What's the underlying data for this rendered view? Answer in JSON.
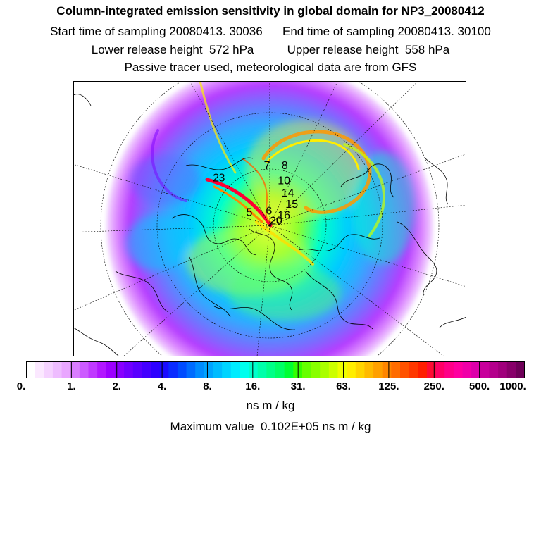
{
  "header": {
    "title": "Column-integrated emission sensitivity in global domain for NP3_20080412",
    "start_label": "Start time of sampling 20080413. 30036",
    "end_label": "End time of sampling 20080413. 30100",
    "lower_label": "Lower release height  572 hPa",
    "upper_label": "Upper release height  558 hPa",
    "note": "Passive tracer used, meteorological data are from GFS"
  },
  "map": {
    "projection": "polar-stereographic-north",
    "markers": [
      {
        "label": "2",
        "x": 0.355,
        "y": 0.365
      },
      {
        "label": "3",
        "x": 0.37,
        "y": 0.365
      },
      {
        "label": "5",
        "x": 0.44,
        "y": 0.49
      },
      {
        "label": "6",
        "x": 0.49,
        "y": 0.485
      },
      {
        "label": "7",
        "x": 0.485,
        "y": 0.32
      },
      {
        "label": "8",
        "x": 0.53,
        "y": 0.32
      },
      {
        "label": "10",
        "x": 0.52,
        "y": 0.375
      },
      {
        "label": "14",
        "x": 0.53,
        "y": 0.42
      },
      {
        "label": "15",
        "x": 0.54,
        "y": 0.46
      },
      {
        "label": "16",
        "x": 0.52,
        "y": 0.5
      },
      {
        "label": "20",
        "x": 0.5,
        "y": 0.52
      }
    ]
  },
  "colorbar": {
    "ticks": [
      "0.",
      "1.",
      "2.",
      "4.",
      "8.",
      "16.",
      "31.",
      "63.",
      "125.",
      "250.",
      "500.",
      "1000."
    ],
    "colors": [
      "#ffffff",
      "#fbe8ff",
      "#f5d2ff",
      "#eebcff",
      "#e9a6ff",
      "#d97dff",
      "#cc5bff",
      "#c039ff",
      "#b217ff",
      "#9d00ff",
      "#8800ff",
      "#7000ff",
      "#5a00ff",
      "#4400ff",
      "#2e00ff",
      "#1a0cff",
      "#0a2cff",
      "#004cff",
      "#006cff",
      "#008cff",
      "#00a4ff",
      "#00bcff",
      "#00d4ff",
      "#00ecff",
      "#00ffee",
      "#00ffcc",
      "#00ffaa",
      "#00ff88",
      "#00ff66",
      "#00ff33",
      "#33ff00",
      "#66ff00",
      "#88ff00",
      "#aaff00",
      "#ccff00",
      "#eeff00",
      "#ffee00",
      "#ffd400",
      "#ffba00",
      "#ffa000",
      "#ff8600",
      "#ff6c00",
      "#ff5200",
      "#ff3800",
      "#ff1e00",
      "#ff0a33",
      "#ff0066",
      "#ff0088",
      "#ff00a0",
      "#f000a8",
      "#dd00aa",
      "#c8009c",
      "#b4008c",
      "#a0007c",
      "#88006a",
      "#6e0058"
    ],
    "unit": "ns m / kg",
    "max_value_text": "Maximum value  0.102E+05 ns m / kg"
  }
}
